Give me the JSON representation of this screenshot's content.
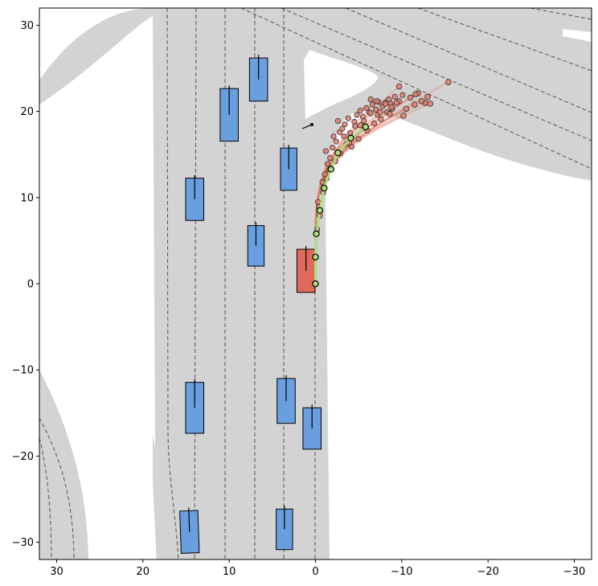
{
  "chart_data": {
    "type": "scatter",
    "title": "",
    "xlabel": "",
    "ylabel": "",
    "xlim": [
      32,
      -32
    ],
    "ylim": [
      -32,
      32
    ],
    "x_inverted": true,
    "grid": false,
    "xticks": [
      30,
      20,
      10,
      0,
      -10,
      -20,
      -30
    ],
    "yticks": [
      -30,
      -20,
      -10,
      0,
      10,
      20,
      30
    ],
    "xtick_labels": [
      "30",
      "20",
      "10",
      "0",
      "−10",
      "−20",
      "−30"
    ],
    "ytick_labels": [
      "−30",
      "−20",
      "−10",
      "0",
      "10",
      "20",
      "30"
    ],
    "colors": {
      "road": "#d3d3d3",
      "lane_line": "#555555",
      "ego_vehicle": "#e06a5a",
      "other_vehicle": "#6a9fdf",
      "sampled_trajectory": "#e07a6a",
      "predicted_trajectory": "#a8e07a"
    },
    "ego_vehicle": {
      "x": 1.1,
      "y": 1.5,
      "width": 2.1,
      "length": 5.0,
      "heading_deg": 90
    },
    "other_vehicles": [
      {
        "x": 6.6,
        "y": 23.7,
        "width": 2.1,
        "length": 5.0,
        "heading_deg": 90
      },
      {
        "x": 10.0,
        "y": 19.6,
        "width": 2.1,
        "length": 6.1,
        "heading_deg": 90
      },
      {
        "x": 14.0,
        "y": 9.8,
        "width": 2.1,
        "length": 4.9,
        "heading_deg": 90
      },
      {
        "x": 6.9,
        "y": 4.4,
        "width": 1.9,
        "length": 4.7,
        "heading_deg": 90
      },
      {
        "x": 3.1,
        "y": 13.3,
        "width": 1.9,
        "length": 4.9,
        "heading_deg": 90
      },
      {
        "x": 14.0,
        "y": -14.4,
        "width": 2.1,
        "length": 5.9,
        "heading_deg": 90
      },
      {
        "x": 3.4,
        "y": -13.6,
        "width": 2.1,
        "length": 5.2,
        "heading_deg": 90
      },
      {
        "x": 0.4,
        "y": -16.8,
        "width": 2.1,
        "length": 4.8,
        "heading_deg": 90
      },
      {
        "x": 14.6,
        "y": -28.8,
        "width": 2.1,
        "length": 4.9,
        "heading_deg": 92
      },
      {
        "x": 3.6,
        "y": -28.5,
        "width": 1.9,
        "length": 4.7,
        "heading_deg": 90
      }
    ],
    "predicted_trajectory": {
      "x": [
        0,
        0,
        -0.1,
        -0.5,
        -1.0,
        -1.8,
        -2.6,
        -4.1,
        -5.8
      ],
      "y": [
        0,
        3.1,
        5.8,
        8.5,
        11.1,
        13.3,
        15.2,
        16.9,
        18.2
      ]
    },
    "sampled_endpoints": {
      "x": [
        -15.4,
        -13.0,
        -12.7,
        -11.9,
        -11.5,
        -11.0,
        -10.5,
        -10.2,
        -9.7,
        -9.4,
        -8.8,
        -8.6,
        -8.1,
        -7.5,
        -7.1,
        -6.4,
        -5.2,
        -3.9,
        -11.6,
        -12.3,
        -13.3
      ],
      "y": [
        23.4,
        21.7,
        21.0,
        22.1,
        20.8,
        21.6,
        20.3,
        19.5,
        22.9,
        21.0,
        20.5,
        19.7,
        20.9,
        19.9,
        21.2,
        19.8,
        18.4,
        16.4,
        22.0,
        21.2,
        20.9
      ]
    },
    "sampled_points": {
      "x": [
        -0.5,
        -0.3,
        -0.8,
        -1.1,
        -1.4,
        -1.7,
        -1.2,
        -2.0,
        -2.4,
        -2.1,
        -2.8,
        -3.1,
        -3.4,
        -2.6,
        -3.8,
        -4.0,
        -4.5,
        -4.8,
        -5.2,
        -5.5,
        -5.9,
        -6.2,
        -6.6,
        -7.0,
        -7.3,
        -7.8,
        -8.1,
        -8.5,
        -8.9,
        -9.2,
        -9.7,
        -10.1,
        -4.2,
        -5.0,
        -6.0,
        -6.8,
        -7.6,
        -8.3,
        -3.6,
        -2.9,
        -1.6,
        -0.9,
        -0.2,
        -0.4,
        -1.3,
        -2.3,
        -3.3,
        -4.6,
        -5.6,
        -6.4,
        -7.2,
        -8.7
      ],
      "y": [
        7.9,
        9.5,
        11.8,
        12.7,
        13.9,
        14.6,
        15.4,
        15.8,
        16.5,
        17.1,
        17.6,
        18.0,
        18.5,
        18.9,
        19.2,
        17.5,
        18.8,
        19.6,
        20.1,
        19.4,
        20.4,
        19.9,
        20.8,
        20.2,
        21.1,
        20.6,
        21.0,
        21.4,
        20.3,
        21.7,
        21.2,
        21.9,
        15.9,
        16.8,
        17.8,
        18.6,
        19.1,
        19.9,
        16.2,
        15.1,
        13.2,
        10.6,
        6.3,
        8.9,
        12.2,
        14.2,
        17.1,
        18.3,
        18.9,
        21.4,
        19.6,
        20.9
      ]
    }
  }
}
